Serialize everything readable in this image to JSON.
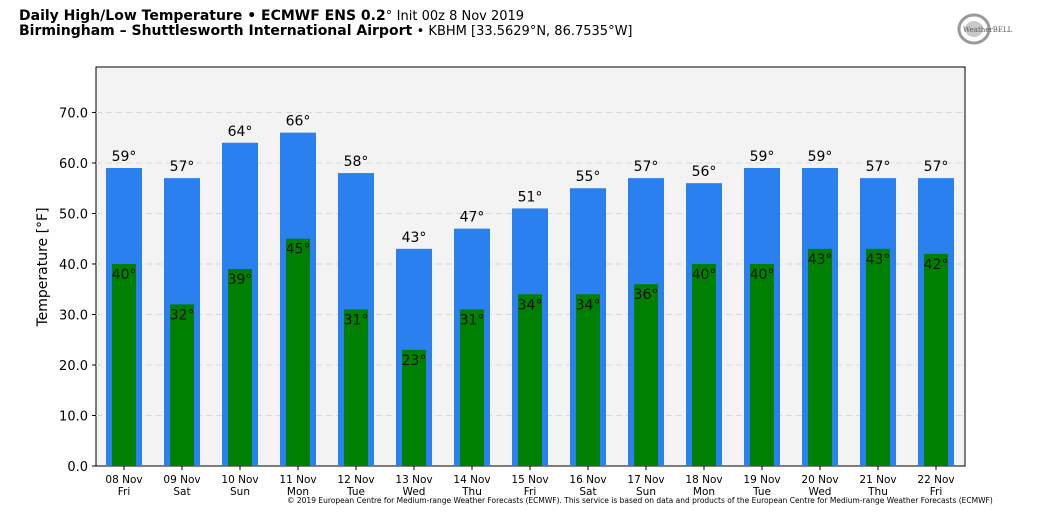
{
  "header": {
    "title_bold": "Daily High/Low Temperature • ECMWF ENS 0.2",
    "title_degree": "°",
    "title_init": "Init 00z 8 Nov 2019",
    "location_bold": "Birmingham – Shuttlesworth International Airport",
    "location_info": "• KBHM [33.5629°N, 86.7535°W]"
  },
  "logo": {
    "text": "WeatherBELL",
    "icon": "weatherbell-logo-icon"
  },
  "footer": {
    "copyright": "© 2019 European Centre for Medium-range Weather Forecasts (ECMWF). This service is based on data and products of the European Centre for Medium-range Weather Forecasts (ECMWF)"
  },
  "colors": {
    "high": "#2b80ef",
    "low": "#008000",
    "plot_bg": "#f3f3f3",
    "grid": "#d9d9d9"
  },
  "chart_data": {
    "type": "bar",
    "ylabel": "Temperature [°F]",
    "ylim": [
      0,
      79
    ],
    "yticks": [
      "0.0",
      "10.0",
      "20.0",
      "30.0",
      "40.0",
      "50.0",
      "60.0",
      "70.0"
    ],
    "grid": true,
    "categories": [
      "08 Nov",
      "09 Nov",
      "10 Nov",
      "11 Nov",
      "12 Nov",
      "13 Nov",
      "14 Nov",
      "15 Nov",
      "16 Nov",
      "17 Nov",
      "18 Nov",
      "19 Nov",
      "20 Nov",
      "21 Nov",
      "22 Nov"
    ],
    "weekdays": [
      "Fri",
      "Sat",
      "Sun",
      "Mon",
      "Tue",
      "Wed",
      "Thu",
      "Fri",
      "Sat",
      "Sun",
      "Mon",
      "Tue",
      "Wed",
      "Thu",
      "Fri"
    ],
    "series": [
      {
        "values": [
          59,
          57,
          64,
          66,
          58,
          43,
          47,
          51,
          55,
          57,
          56,
          59,
          59,
          57,
          57
        ],
        "labels": [
          "59°",
          "57°",
          "64°",
          "66°",
          "58°",
          "43°",
          "47°",
          "51°",
          "55°",
          "57°",
          "56°",
          "59°",
          "59°",
          "57°",
          "57°"
        ]
      },
      {
        "values": [
          40,
          32,
          39,
          45,
          31,
          23,
          31,
          34,
          34,
          36,
          40,
          40,
          43,
          43,
          42
        ],
        "labels": [
          "40°",
          "32°",
          "39°",
          "45°",
          "31°",
          "23°",
          "31°",
          "34°",
          "34°",
          "36°",
          "40°",
          "40°",
          "43°",
          "43°",
          "42°"
        ]
      }
    ]
  }
}
